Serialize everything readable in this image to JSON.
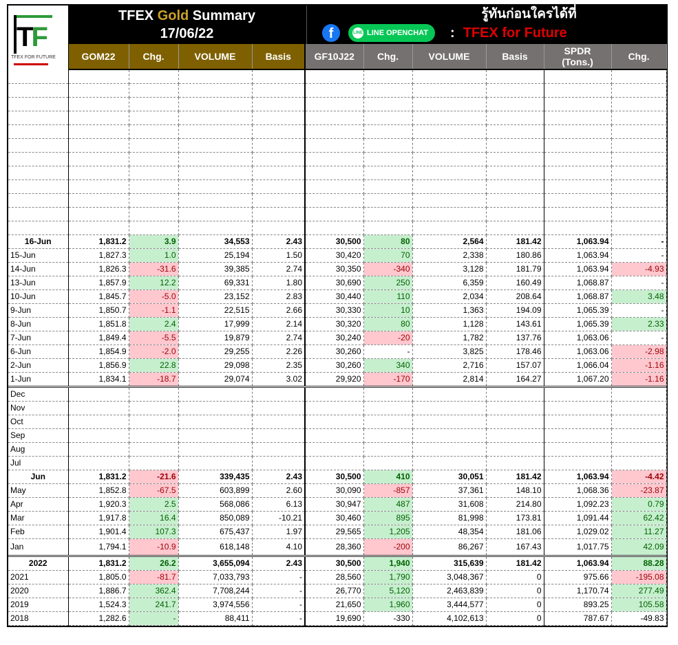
{
  "title": {
    "prefix": "TFEX ",
    "gold": "Gold",
    "suffix": " Summary",
    "date": "17/06/22"
  },
  "logo": {
    "letters_t": "T",
    "letters_f": "F",
    "tagline": "TFEX FOR FUTURE"
  },
  "promo": {
    "thai": "รู้ทันก่อนใครได้ที่",
    "facebook_icon": "facebook-icon",
    "line_label": "LINE OPENCHAT",
    "line_icon_text": "LINE",
    "colon": ":",
    "channel": "TFEX for Future"
  },
  "colors": {
    "gold_header": "#7f6000",
    "gray_header": "#767171",
    "green_bg": "#c6efce",
    "green_text": "#006100",
    "red_bg": "#ffc7ce",
    "red_text": "#9c0006",
    "channel_red": "#e00000"
  },
  "headers": [
    "",
    "GOM22",
    "Chg.",
    "VOLUME",
    "Basis",
    "GF10J22",
    "Chg.",
    "VOLUME",
    "Basis",
    "SPDR\n(Tons.)",
    "Chg."
  ],
  "daily": [
    {
      "bold": true,
      "hl": [
        "g",
        "g",
        ""
      ],
      "cells": [
        "16-Jun",
        "1,831.2",
        "3.9",
        "34,553",
        "2.43",
        "30,500",
        "80",
        "2,564",
        "181.42",
        "1,063.94",
        "-"
      ]
    },
    {
      "hl": [
        "g",
        "g",
        ""
      ],
      "cells": [
        "15-Jun",
        "1,827.3",
        "1.0",
        "25,194",
        "1.50",
        "30,420",
        "70",
        "2,338",
        "180.86",
        "1,063.94",
        "-"
      ]
    },
    {
      "hl": [
        "r",
        "r",
        "r"
      ],
      "cells": [
        "14-Jun",
        "1,826.3",
        "-31.6",
        "39,385",
        "2.74",
        "30,350",
        "-340",
        "3,128",
        "181.79",
        "1,063.94",
        "-4.93"
      ]
    },
    {
      "hl": [
        "g",
        "g",
        ""
      ],
      "cells": [
        "13-Jun",
        "1,857.9",
        "12.2",
        "69,331",
        "1.80",
        "30,690",
        "250",
        "6,359",
        "160.49",
        "1,068.87",
        "-"
      ]
    },
    {
      "hl": [
        "r",
        "g",
        "g"
      ],
      "cells": [
        "10-Jun",
        "1,845.7",
        "-5.0",
        "23,152",
        "2.83",
        "30,440",
        "110",
        "2,034",
        "208.64",
        "1,068.87",
        "3.48"
      ]
    },
    {
      "hl": [
        "r",
        "g",
        ""
      ],
      "cells": [
        "9-Jun",
        "1,850.7",
        "-1.1",
        "22,515",
        "2.66",
        "30,330",
        "10",
        "1,363",
        "194.09",
        "1,065.39",
        "-"
      ]
    },
    {
      "hl": [
        "g",
        "g",
        "g"
      ],
      "cells": [
        "8-Jun",
        "1,851.8",
        "2.4",
        "17,999",
        "2.14",
        "30,320",
        "80",
        "1,128",
        "143.61",
        "1,065.39",
        "2.33"
      ]
    },
    {
      "hl": [
        "r",
        "r",
        ""
      ],
      "cells": [
        "7-Jun",
        "1,849.4",
        "-5.5",
        "19,879",
        "2.74",
        "30,240",
        "-20",
        "1,782",
        "137.76",
        "1,063.06",
        "-"
      ]
    },
    {
      "hl": [
        "r",
        "",
        "r"
      ],
      "cells": [
        "6-Jun",
        "1,854.9",
        "-2.0",
        "29,255",
        "2.26",
        "30,260",
        "-",
        "3,825",
        "178.46",
        "1,063.06",
        "-2.98"
      ]
    },
    {
      "hl": [
        "g",
        "g",
        "r"
      ],
      "cells": [
        "2-Jun",
        "1,856.9",
        "22.8",
        "29,098",
        "2.35",
        "30,260",
        "340",
        "2,716",
        "157.07",
        "1,066.04",
        "-1.16"
      ]
    },
    {
      "hl": [
        "r",
        "r",
        "r"
      ],
      "cells": [
        "1-Jun",
        "1,834.1",
        "-18.7",
        "29,074",
        "3.02",
        "29,920",
        "-170",
        "2,814",
        "164.27",
        "1,067.20",
        "-1.16"
      ]
    }
  ],
  "empty_months": [
    "Dec",
    "Nov",
    "Oct",
    "Sep",
    "Aug",
    "Jul"
  ],
  "monthly": [
    {
      "bold": true,
      "hl": [
        "r",
        "g",
        "r"
      ],
      "cells": [
        "Jun",
        "1,831.2",
        "-21.6",
        "339,435",
        "2.43",
        "30,500",
        "410",
        "30,051",
        "181.42",
        "1,063.94",
        "-4.42"
      ]
    },
    {
      "hl": [
        "r",
        "r",
        "r"
      ],
      "cells": [
        "May",
        "1,852.8",
        "-67.5",
        "603,899",
        "2.60",
        "30,090",
        "-857",
        "37,361",
        "148.10",
        "1,068.36",
        "-23.87"
      ]
    },
    {
      "hl": [
        "g",
        "g",
        "g"
      ],
      "cells": [
        "Apr",
        "1,920.3",
        "2.5",
        "568,086",
        "6.13",
        "30,947",
        "487",
        "31,608",
        "214.80",
        "1,092.23",
        "0.79"
      ]
    },
    {
      "hl": [
        "g",
        "g",
        "g"
      ],
      "cells": [
        "Mar",
        "1,917.8",
        "16.4",
        "850,089",
        "-10.21",
        "30,460",
        "895",
        "81,998",
        "173.81",
        "1,091.44",
        "62.42"
      ]
    },
    {
      "hl": [
        "g",
        "g",
        "g"
      ],
      "cells": [
        "Feb",
        "1,901.4",
        "107.3",
        "675,437",
        "1.97",
        "29,565",
        "1,205",
        "48,354",
        "181.06",
        "1,029.02",
        "11.27"
      ]
    },
    {
      "hl": [
        "r",
        "r",
        "g"
      ],
      "cells": [
        "Jan",
        "1,794.1",
        "-10.9",
        "618,148",
        "4.10",
        "28,360",
        "-200",
        "86,267",
        "167.43",
        "1,017.75",
        "42.09"
      ]
    }
  ],
  "yearly": [
    {
      "bold": true,
      "hl": [
        "g",
        "g",
        "g"
      ],
      "cells": [
        "2022",
        "1,831.2",
        "26.2",
        "3,655,094",
        "2.43",
        "30,500",
        "1,940",
        "315,639",
        "181.42",
        "1,063.94",
        "88.28"
      ]
    },
    {
      "hl": [
        "r",
        "g",
        "r"
      ],
      "cells": [
        "2021",
        "1,805.0",
        "-81.7",
        "7,033,793",
        "-",
        "28,560",
        "1,790",
        "3,048,367",
        "0",
        "975.66",
        "-195.08"
      ]
    },
    {
      "hl": [
        "g",
        "g",
        "g"
      ],
      "cells": [
        "2020",
        "1,886.7",
        "362.4",
        "7,708,244",
        "-",
        "26,770",
        "5,120",
        "2,463,839",
        "0",
        "1,170.74",
        "277.49"
      ]
    },
    {
      "hl": [
        "g",
        "g",
        "g"
      ],
      "cells": [
        "2019",
        "1,524.3",
        "241.7",
        "3,974,556",
        "-",
        "21,650",
        "1,960",
        "3,444,577",
        "0",
        "893.25",
        "105.58"
      ]
    },
    {
      "hl": [
        "g",
        "",
        ""
      ],
      "cells": [
        "2018",
        "1,282.6",
        "-",
        "88,411",
        "-",
        "19,690",
        "-330",
        "4,102,613",
        "0",
        "787.67",
        "-49.83"
      ]
    }
  ]
}
